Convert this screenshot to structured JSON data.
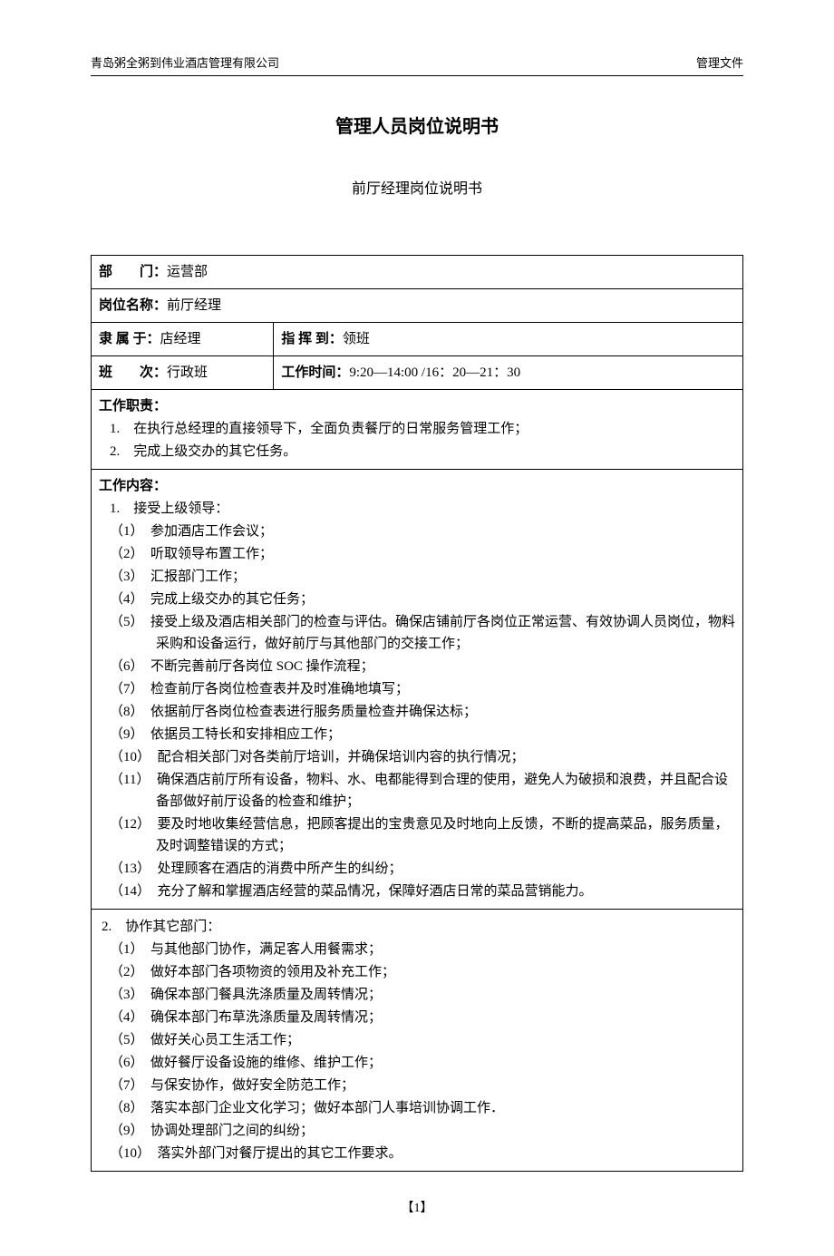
{
  "header": {
    "company": "青岛粥全粥到伟业酒店管理有限公司",
    "doc_type": "管理文件"
  },
  "title": "管理人员岗位说明书",
  "subtitle": "前厅经理岗位说明书",
  "fields": {
    "dept_label": "部　　门：",
    "dept_value": "运营部",
    "position_label": "岗位名称：",
    "position_value": "前厅经理",
    "reports_to_label": "隶 属 于：",
    "reports_to_value": "店经理",
    "directs_label": "指 挥 到：",
    "directs_value": "领班",
    "shift_label": "班　　次：",
    "shift_value": "行政班",
    "worktime_label": "工作时间：",
    "worktime_value": "9:20—14:00 /16：20—21：30"
  },
  "duties": {
    "heading": "工作职责：",
    "items": [
      "在执行总经理的直接领导下，全面负责餐厅的日常服务管理工作；",
      "完成上级交办的其它任务。"
    ]
  },
  "content": {
    "heading": "工作内容：",
    "section1_title": "接受上级领导：",
    "section1_items": [
      "参加酒店工作会议；",
      "听取领导布置工作；",
      "汇报部门工作；",
      "完成上级交办的其它任务；",
      "接受上级及酒店相关部门的检查与评估。确保店铺前厅各岗位正常运营、有效协调人员岗位，物料采购和设备运行，做好前厅与其他部门的交接工作；",
      "不断完善前厅各岗位 SOC 操作流程；",
      "检查前厅各岗位检查表并及时准确地填写；",
      "依据前厅各岗位检查表进行服务质量检查并确保达标；",
      "依据员工特长和安排相应工作；",
      "配合相关部门对各类前厅培训，并确保培训内容的执行情况；",
      "确保酒店前厅所有设备，物料、水、电都能得到合理的使用，避免人为破损和浪费，并且配合设备部做好前厅设备的检查和维护；",
      "要及时地收集经营信息，把顾客提出的宝贵意见及时地向上反馈，不断的提高菜品，服务质量，及时调整错误的方式；",
      "处理顾客在酒店的消费中所产生的纠纷；",
      "充分了解和掌握酒店经营的菜品情况，保障好酒店日常的菜品营销能力。"
    ],
    "section2_title": "协作其它部门：",
    "section2_items": [
      "与其他部门协作，满足客人用餐需求；",
      "做好本部门各项物资的领用及补充工作；",
      "确保本部门餐具洗涤质量及周转情况；",
      "确保本部门布草洗涤质量及周转情况；",
      "做好关心员工生活工作；",
      "做好餐厅设备设施的维修、维护工作；",
      "与保安协作，做好安全防范工作；",
      "落实本部门企业文化学习；做好本部门人事培训协调工作．",
      "协调处理部门之间的纠纷；",
      "落实外部门对餐厅提出的其它工作要求。"
    ]
  },
  "page_number": "【1】"
}
